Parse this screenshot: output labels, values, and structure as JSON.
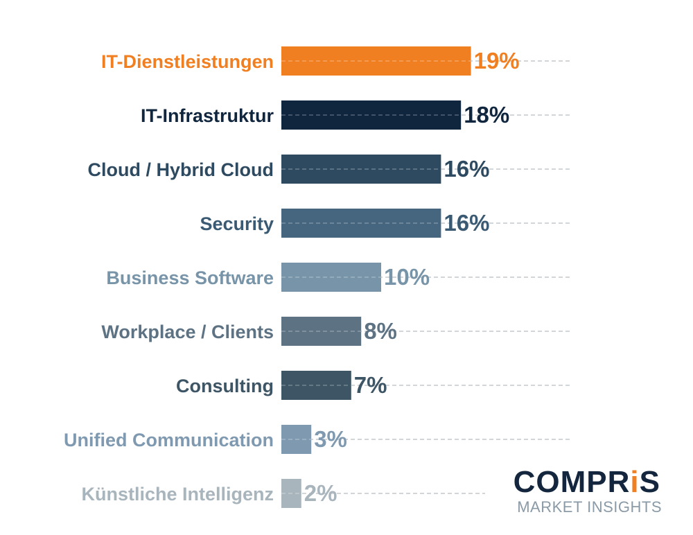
{
  "chart_data": {
    "type": "bar",
    "orientation": "horizontal",
    "categories": [
      "IT-Dienstleistungen",
      "IT-Infrastruktur",
      "Cloud / Hybrid Cloud",
      "Security",
      "Business Software",
      "Workplace / Clients",
      "Consulting",
      "Unified Communication",
      "Künstliche Intelligenz"
    ],
    "values": [
      19,
      18,
      16,
      16,
      10,
      8,
      7,
      3,
      2
    ],
    "value_labels": [
      "19%",
      "18%",
      "16%",
      "16%",
      "10%",
      "8%",
      "7%",
      "3%",
      "2%"
    ],
    "unit": "%",
    "colors": [
      "#f07f22",
      "#10263f",
      "#2e4a60",
      "#46657f",
      "#7894a8",
      "#5d7283",
      "#3d5565",
      "#7f9ab0",
      "#a9b5bc"
    ],
    "label_colors": [
      "#f07f22",
      "#10263f",
      "#2e4a60",
      "#3a5a73",
      "#7894a8",
      "#5d7283",
      "#3d5565",
      "#7f9ab0",
      "#a9b5bc"
    ],
    "title": "",
    "xlabel": "",
    "ylabel": "",
    "grid": "dashed guide lines per row",
    "legend": "none"
  },
  "branding": {
    "logo_text": "COMPRiS",
    "subtitle": "MARKET INSIGHTS",
    "logo_color": "#14263d",
    "logo_accent_color": "#f07f22",
    "subtitle_color": "#8a9aa7"
  }
}
